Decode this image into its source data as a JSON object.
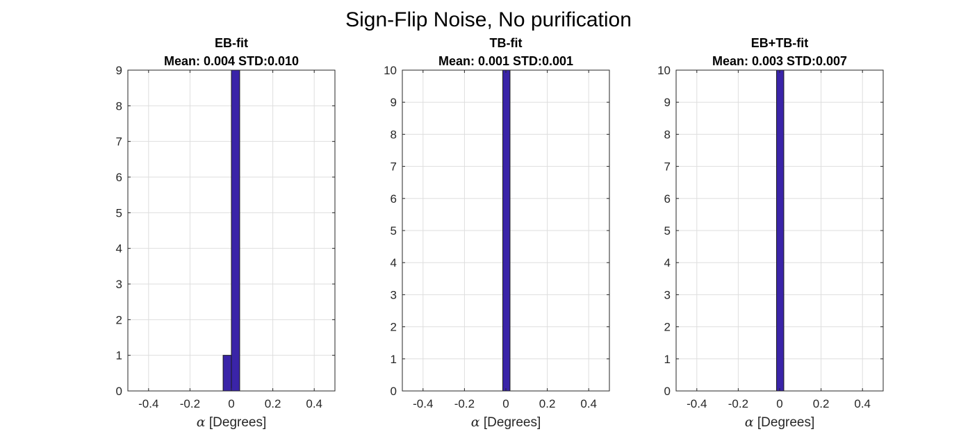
{
  "figure": {
    "suptitle": "Sign-Flip Noise, No purification"
  },
  "colors": {
    "bar_fill": "#3A24A8",
    "bar_edge": "#1a1a1a",
    "grid": "#dedede",
    "axis": "#262626"
  },
  "chart_data": [
    {
      "type": "bar",
      "title_line1": "EB-fit",
      "title_line2": "Mean: 0.004 STD:0.010",
      "xlabel_symbol": "α",
      "xlabel_text": " [Degrees]",
      "ylabel": "",
      "xlim": [
        -0.5,
        0.5
      ],
      "ylim": [
        0,
        9
      ],
      "xticks": [
        -0.4,
        -0.2,
        0,
        0.2,
        0.4
      ],
      "xtick_labels": [
        "-0.4",
        "-0.2",
        "0",
        "0.2",
        "0.4"
      ],
      "yticks": [
        0,
        1,
        2,
        3,
        4,
        5,
        6,
        7,
        8,
        9
      ],
      "ytick_labels": [
        "0",
        "1",
        "2",
        "3",
        "4",
        "5",
        "6",
        "7",
        "8",
        "9"
      ],
      "grid": true,
      "bins": [
        {
          "x0": -0.04,
          "x1": -0.0,
          "count": 1
        },
        {
          "x0": -0.0,
          "x1": 0.04,
          "count": 9
        }
      ]
    },
    {
      "type": "bar",
      "title_line1": "TB-fit",
      "title_line2": "Mean: 0.001 STD:0.001",
      "xlabel_symbol": "α",
      "xlabel_text": " [Degrees]",
      "ylabel": "",
      "xlim": [
        -0.5,
        0.5
      ],
      "ylim": [
        0,
        10
      ],
      "xticks": [
        -0.4,
        -0.2,
        0,
        0.2,
        0.4
      ],
      "xtick_labels": [
        "-0.4",
        "-0.2",
        "0",
        "0.2",
        "0.4"
      ],
      "yticks": [
        0,
        1,
        2,
        3,
        4,
        5,
        6,
        7,
        8,
        9,
        10
      ],
      "ytick_labels": [
        "0",
        "1",
        "2",
        "3",
        "4",
        "5",
        "6",
        "7",
        "8",
        "9",
        "10"
      ],
      "grid": true,
      "bins": [
        {
          "x0": -0.015,
          "x1": 0.02,
          "count": 10
        }
      ]
    },
    {
      "type": "bar",
      "title_line1": "EB+TB-fit",
      "title_line2": "Mean: 0.003 STD:0.007",
      "xlabel_symbol": "α",
      "xlabel_text": " [Degrees]",
      "ylabel": "",
      "xlim": [
        -0.5,
        0.5
      ],
      "ylim": [
        0,
        10
      ],
      "xticks": [
        -0.4,
        -0.2,
        0,
        0.2,
        0.4
      ],
      "xtick_labels": [
        "-0.4",
        "-0.2",
        "0",
        "0.2",
        "0.4"
      ],
      "yticks": [
        0,
        1,
        2,
        3,
        4,
        5,
        6,
        7,
        8,
        9,
        10
      ],
      "ytick_labels": [
        "0",
        "1",
        "2",
        "3",
        "4",
        "5",
        "6",
        "7",
        "8",
        "9",
        "10"
      ],
      "grid": true,
      "bins": [
        {
          "x0": -0.015,
          "x1": 0.02,
          "count": 10
        }
      ]
    }
  ]
}
